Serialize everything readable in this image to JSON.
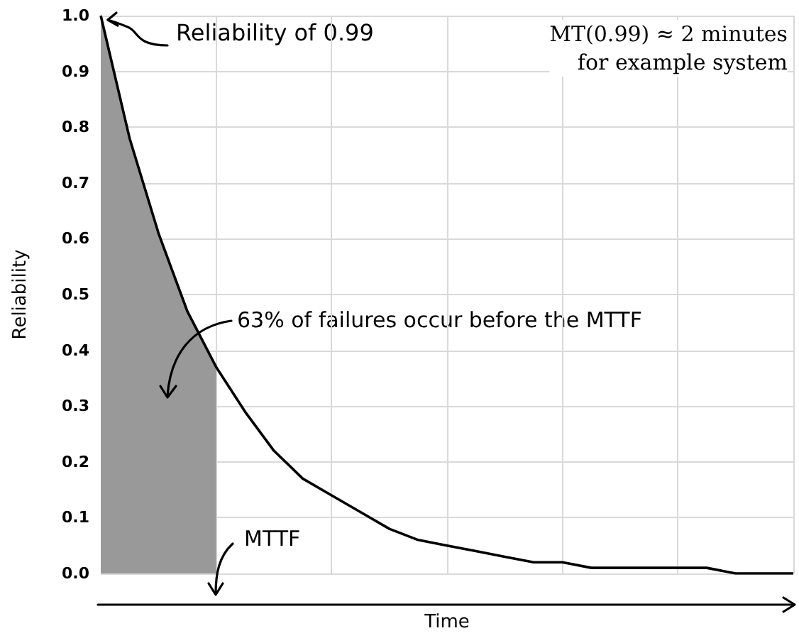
{
  "chart_data": {
    "type": "line",
    "ylabel": "Reliability",
    "xlabel": "Time",
    "categories": [
      null,
      null,
      null,
      null,
      null,
      null,
      null,
      null,
      null,
      null,
      null,
      null,
      null,
      null,
      null,
      null,
      null,
      null,
      null,
      null,
      null,
      null,
      null,
      null,
      null
    ],
    "series": [
      {
        "type": "area",
        "color": "#999999",
        "values": [
          1.0,
          0.78,
          0.61,
          0.47,
          0.37,
          null,
          null,
          null,
          null,
          null,
          null,
          null,
          null,
          null,
          null,
          null,
          null,
          null,
          null,
          null,
          null,
          null,
          null,
          null,
          null
        ]
      },
      {
        "type": "line",
        "color": "#000000",
        "values": [
          1.0,
          0.78,
          0.61,
          0.47,
          0.37,
          0.29,
          0.22,
          0.17,
          0.14,
          0.11,
          0.08,
          0.06,
          0.05,
          0.04,
          0.03,
          0.02,
          0.02,
          0.01,
          0.01,
          0.01,
          0.01,
          0.01,
          0.0,
          0.0,
          0.0
        ]
      }
    ],
    "ylim": [
      0,
      1
    ],
    "yticks": [
      {
        "value": 0,
        "label": "0.0"
      },
      {
        "value": 0.1,
        "label": "0.1"
      },
      {
        "value": 0.2,
        "label": "0.2"
      },
      {
        "value": 0.3,
        "label": "0.3"
      },
      {
        "value": 0.4,
        "label": "0.4"
      },
      {
        "value": 0.5,
        "label": "0.5"
      },
      {
        "value": 0.6,
        "label": "0.6"
      },
      {
        "value": 0.7,
        "label": "0.7"
      },
      {
        "value": 0.8,
        "label": "0.8"
      },
      {
        "value": 0.9,
        "label": "0.9"
      },
      {
        "value": 1,
        "label": "1.0"
      }
    ],
    "annotations": [
      "Reliability of 0.99",
      "MT(0.99) ≈ 2 minutes\nfor example system",
      "63% of failures occur before the MTTF",
      "MTTF"
    ],
    "grid": true,
    "tick_labels": "y",
    "marker": "none",
    "line_style": "solid"
  }
}
